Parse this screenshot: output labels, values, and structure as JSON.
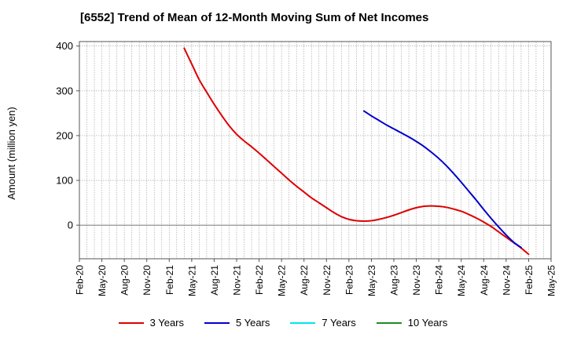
{
  "chart_data": {
    "type": "line",
    "title": "[6552]  Trend of Mean of 12-Month Moving Sum of Net Incomes",
    "xlabel": "",
    "ylabel": "Amount (million yen)",
    "ylim": [
      -75,
      410
    ],
    "yticks": [
      0,
      100,
      200,
      300,
      400
    ],
    "xtick_labels": [
      "Feb-20",
      "May-20",
      "Aug-20",
      "Nov-20",
      "Feb-21",
      "May-21",
      "Aug-21",
      "Nov-21",
      "Feb-22",
      "May-22",
      "Aug-22",
      "Nov-22",
      "Feb-23",
      "May-23",
      "Aug-23",
      "Nov-23",
      "Feb-24",
      "May-24",
      "Aug-24",
      "Nov-24",
      "Feb-25",
      "May-25"
    ],
    "grid": true,
    "legend_position": "bottom",
    "series": [
      {
        "name": "3 Years",
        "color": "#dd0000",
        "points": [
          [
            "Apr-21",
            395
          ],
          [
            "May-21",
            360
          ],
          [
            "Jun-21",
            325
          ],
          [
            "Jul-21",
            297
          ],
          [
            "Aug-21",
            270
          ],
          [
            "Sep-21",
            245
          ],
          [
            "Oct-21",
            222
          ],
          [
            "Nov-21",
            203
          ],
          [
            "Dec-21",
            188
          ],
          [
            "Jan-22",
            175
          ],
          [
            "Feb-22",
            161
          ],
          [
            "Mar-22",
            146
          ],
          [
            "Apr-22",
            131
          ],
          [
            "May-22",
            116
          ],
          [
            "Jun-22",
            101
          ],
          [
            "Jul-22",
            87
          ],
          [
            "Aug-22",
            74
          ],
          [
            "Sep-22",
            61
          ],
          [
            "Oct-22",
            50
          ],
          [
            "Nov-22",
            39
          ],
          [
            "Dec-22",
            28
          ],
          [
            "Jan-23",
            19
          ],
          [
            "Feb-23",
            13
          ],
          [
            "Mar-23",
            10
          ],
          [
            "Apr-23",
            9
          ],
          [
            "May-23",
            10
          ],
          [
            "Jun-23",
            13
          ],
          [
            "Jul-23",
            17
          ],
          [
            "Aug-23",
            22
          ],
          [
            "Sep-23",
            28
          ],
          [
            "Oct-23",
            34
          ],
          [
            "Nov-23",
            39
          ],
          [
            "Dec-23",
            42
          ],
          [
            "Jan-24",
            43
          ],
          [
            "Feb-24",
            42
          ],
          [
            "Mar-24",
            40
          ],
          [
            "Apr-24",
            36
          ],
          [
            "May-24",
            31
          ],
          [
            "Jun-24",
            24
          ],
          [
            "Jul-24",
            16
          ],
          [
            "Aug-24",
            7
          ],
          [
            "Sep-24",
            -3
          ],
          [
            "Oct-24",
            -15
          ],
          [
            "Nov-24",
            -27
          ],
          [
            "Dec-24",
            -39
          ],
          [
            "Jan-25",
            -51
          ],
          [
            "Feb-25",
            -65
          ]
        ]
      },
      {
        "name": "5 Years",
        "color": "#0000cc",
        "points": [
          [
            "Apr-23",
            255
          ],
          [
            "May-23",
            244
          ],
          [
            "Jun-23",
            234
          ],
          [
            "Jul-23",
            224
          ],
          [
            "Aug-23",
            215
          ],
          [
            "Sep-23",
            206
          ],
          [
            "Oct-23",
            197
          ],
          [
            "Nov-23",
            187
          ],
          [
            "Dec-23",
            176
          ],
          [
            "Jan-24",
            163
          ],
          [
            "Feb-24",
            149
          ],
          [
            "Mar-24",
            133
          ],
          [
            "Apr-24",
            115
          ],
          [
            "May-24",
            96
          ],
          [
            "Jun-24",
            76
          ],
          [
            "Jul-24",
            56
          ],
          [
            "Aug-24",
            35
          ],
          [
            "Sep-24",
            15
          ],
          [
            "Oct-24",
            -4
          ],
          [
            "Nov-24",
            -22
          ],
          [
            "Dec-24",
            -38
          ],
          [
            "Jan-25",
            -50
          ]
        ]
      },
      {
        "name": "7 Years",
        "color": "#00e5ee",
        "points": []
      },
      {
        "name": "10 Years",
        "color": "#228b22",
        "points": []
      }
    ]
  }
}
